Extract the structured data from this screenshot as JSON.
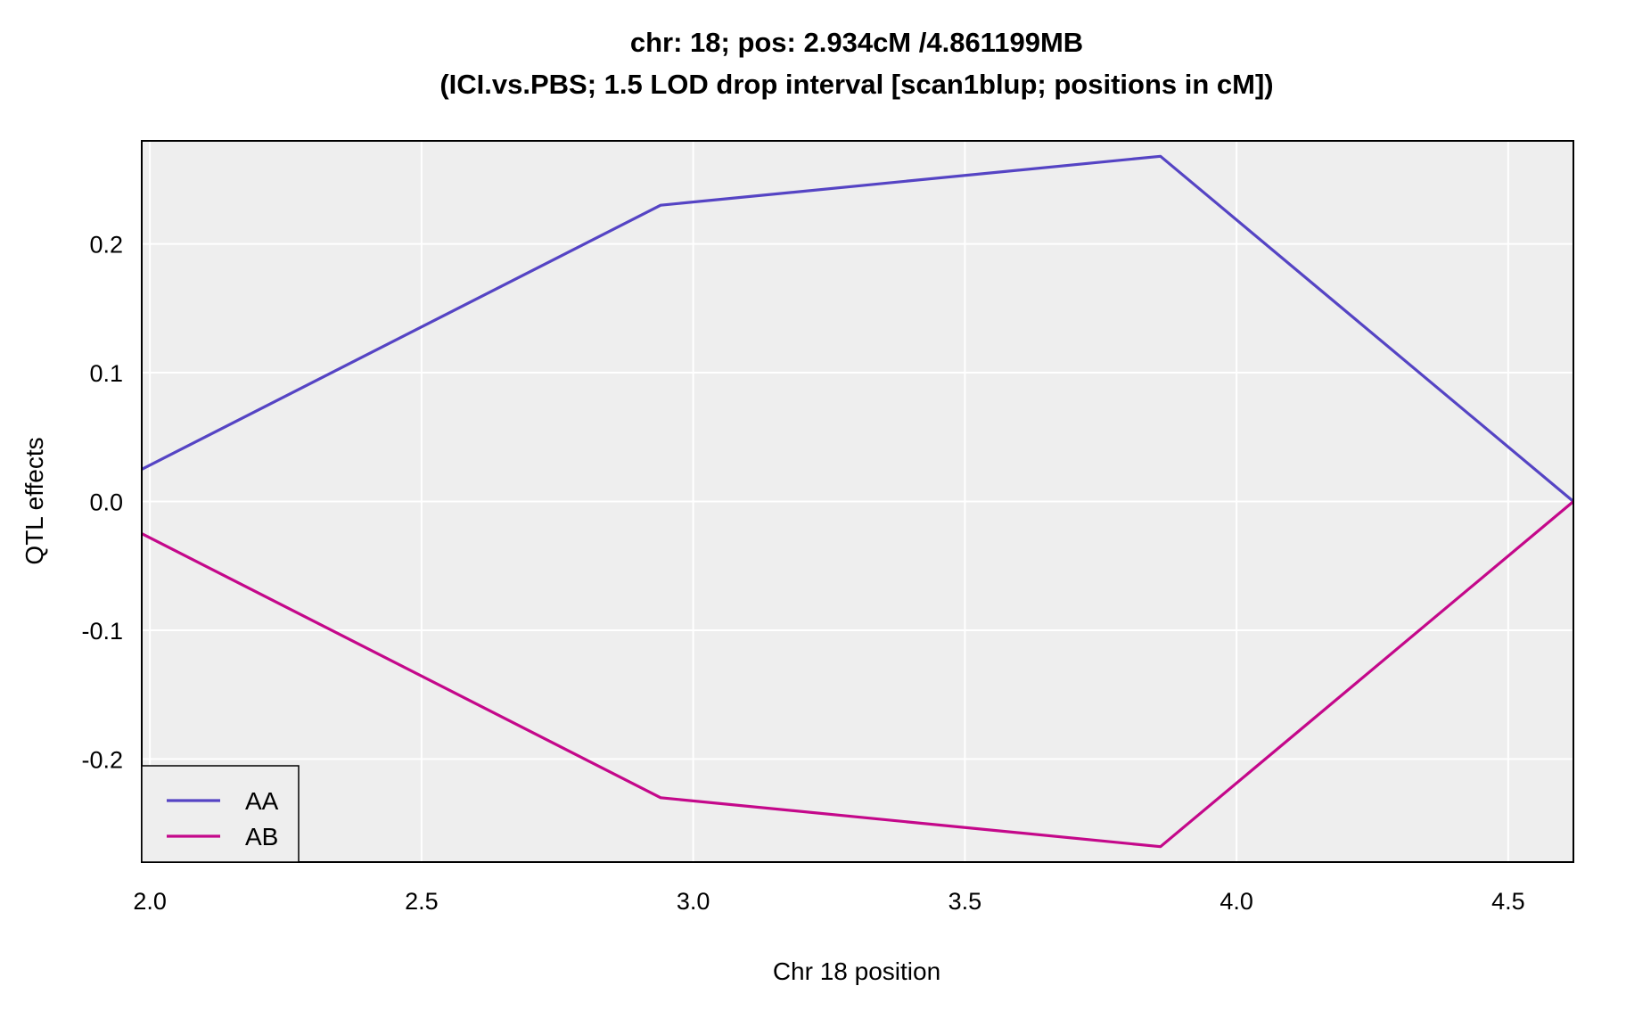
{
  "chart_data": {
    "type": "line",
    "title": "chr: 18; pos: 2.934cM /4.861199MB",
    "subtitle": "(ICI.vs.PBS; 1.5 LOD drop interval [scan1blup; positions in cM])",
    "xlabel": "Chr 18 position",
    "ylabel": "QTL effects",
    "xlim": [
      1.985,
      4.62
    ],
    "ylim": [
      -0.28,
      0.28
    ],
    "x_ticks": [
      2.0,
      2.5,
      3.0,
      3.5,
      4.0,
      4.5
    ],
    "x_tick_labels": [
      "2.0",
      "2.5",
      "3.0",
      "3.5",
      "4.0",
      "4.5"
    ],
    "y_ticks": [
      -0.2,
      -0.1,
      0.0,
      0.1,
      0.2
    ],
    "y_tick_labels": [
      "-0.2",
      "-0.1",
      "0.0",
      "0.1",
      "0.2"
    ],
    "grid": true,
    "background": "#eeeeee",
    "grid_color": "#ffffff",
    "legend_position": "bottom-left",
    "series": [
      {
        "name": "AA",
        "color": "#5544c4",
        "x": [
          1.985,
          2.94,
          3.86,
          4.62
        ],
        "y": [
          0.025,
          0.23,
          0.268,
          0.0
        ]
      },
      {
        "name": "AB",
        "color": "#c4088a",
        "x": [
          1.985,
          2.94,
          3.86,
          4.62
        ],
        "y": [
          -0.025,
          -0.23,
          -0.268,
          0.0
        ]
      }
    ]
  }
}
